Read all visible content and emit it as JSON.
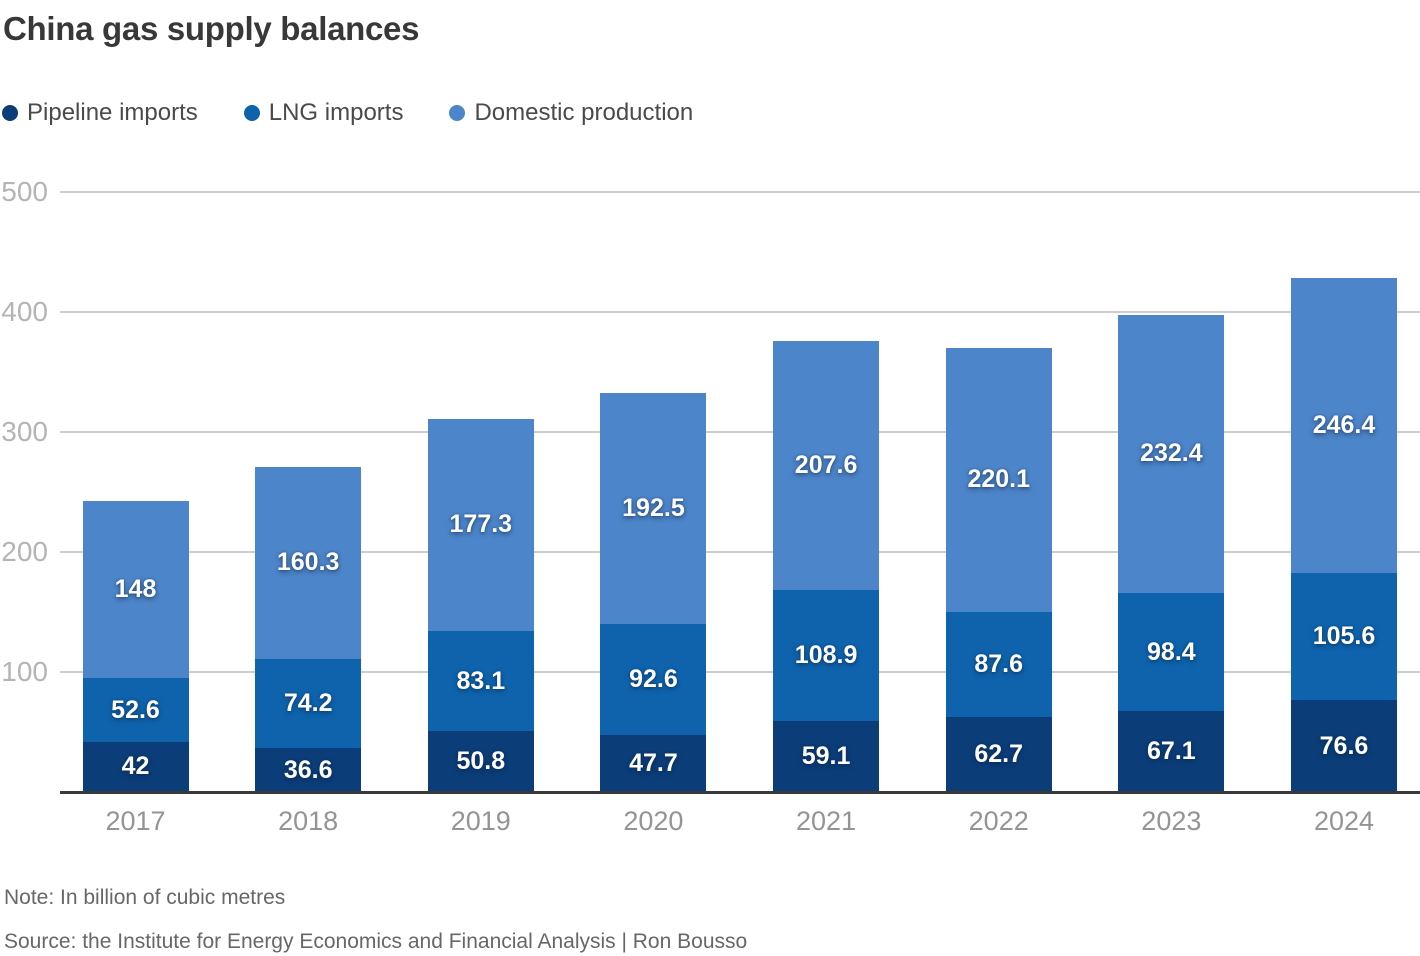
{
  "title": "China gas supply balances",
  "legend": [
    {
      "label": "Pipeline imports",
      "color": "#0b3d78",
      "icon": "legend-dot"
    },
    {
      "label": "LNG imports",
      "color": "#0e63ac",
      "icon": "legend-dot"
    },
    {
      "label": "Domestic production",
      "color": "#4c85c9",
      "icon": "legend-dot"
    }
  ],
  "note": "Note: In billion of cubic metres",
  "source": "Source: the Institute for Energy Economics and Financial Analysis | Ron Bousso",
  "chart_data": {
    "type": "bar",
    "stacked": true,
    "title": "China gas supply balances",
    "xlabel": "",
    "ylabel": "",
    "unit": "billion cubic metres",
    "categories": [
      "2017",
      "2018",
      "2019",
      "2020",
      "2021",
      "2022",
      "2023",
      "2024"
    ],
    "series": [
      {
        "name": "Pipeline imports",
        "color": "#0b3d78",
        "values": [
          42,
          36.6,
          50.8,
          47.7,
          59.1,
          62.7,
          67.1,
          76.6
        ]
      },
      {
        "name": "LNG imports",
        "color": "#0e63ac",
        "values": [
          52.6,
          74.2,
          83.1,
          92.6,
          108.9,
          87.6,
          98.4,
          105.6
        ]
      },
      {
        "name": "Domestic production",
        "color": "#4c85c9",
        "values": [
          148,
          160.3,
          177.3,
          192.5,
          207.6,
          220.1,
          232.4,
          246.4
        ]
      }
    ],
    "yticks": [
      100,
      200,
      300,
      400,
      500
    ],
    "ylim": [
      0,
      500
    ],
    "grid": true,
    "legend_position": "top"
  },
  "colors": {
    "grid": "#cdcdcd",
    "axis": "#3a3a3a",
    "y_tick_text": "#b4b4b4",
    "x_tick_text": "#949494",
    "title_text": "#383838",
    "legend_text": "#4a4a4a",
    "note_text": "#676767",
    "bar_label_text": "#ffffff",
    "background": "#ffffff"
  }
}
